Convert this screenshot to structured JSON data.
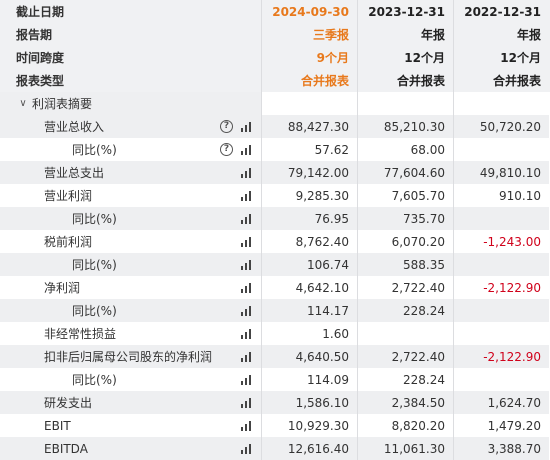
{
  "header": {
    "rows": [
      {
        "label": "截止日期",
        "cols": [
          "2024-09-30",
          "2023-12-31",
          "2022-12-31"
        ]
      },
      {
        "label": "报告期",
        "cols": [
          "三季报",
          "年报",
          "年报"
        ]
      },
      {
        "label": "时间跨度",
        "cols": [
          "9个月",
          "12个月",
          "12个月"
        ]
      },
      {
        "label": "报表类型",
        "cols": [
          "合并报表",
          "合并报表",
          "合并报表"
        ]
      }
    ],
    "highlight_color": "#e8791c"
  },
  "section": {
    "label": "利润表摘要",
    "chevron": "chevron-down-icon"
  },
  "rows": [
    {
      "label": "营业总收入",
      "cols": [
        "88,427.30",
        "85,210.30",
        "50,720.20"
      ]
    },
    {
      "label": "同比(%)",
      "cols": [
        "57.62",
        "68.00",
        ""
      ]
    },
    {
      "label": "营业总支出",
      "cols": [
        "79,142.00",
        "77,604.60",
        "49,810.10"
      ]
    },
    {
      "label": "营业利润",
      "cols": [
        "9,285.30",
        "7,605.70",
        "910.10"
      ]
    },
    {
      "label": "同比(%)",
      "cols": [
        "76.95",
        "735.70",
        ""
      ]
    },
    {
      "label": "税前利润",
      "cols": [
        "8,762.40",
        "6,070.20",
        "-1,243.00"
      ]
    },
    {
      "label": "同比(%)",
      "cols": [
        "106.74",
        "588.35",
        ""
      ]
    },
    {
      "label": "净利润",
      "cols": [
        "4,642.10",
        "2,722.40",
        "-2,122.90"
      ]
    },
    {
      "label": "同比(%)",
      "cols": [
        "114.17",
        "228.24",
        ""
      ]
    },
    {
      "label": "非经常性损益",
      "cols": [
        "1.60",
        "",
        ""
      ]
    },
    {
      "label": "扣非后归属母公司股东的净利润",
      "cols": [
        "4,640.50",
        "2,722.40",
        "-2,122.90"
      ]
    },
    {
      "label": "同比(%)",
      "cols": [
        "114.09",
        "228.24",
        ""
      ]
    },
    {
      "label": "研发支出",
      "cols": [
        "1,586.10",
        "2,384.50",
        "1,624.70"
      ]
    },
    {
      "label": "EBIT",
      "cols": [
        "10,929.30",
        "8,820.20",
        "1,479.20"
      ]
    },
    {
      "label": "EBITDA",
      "cols": [
        "12,616.40",
        "11,061.30",
        "3,388.70"
      ]
    }
  ],
  "icons": {
    "help": "help-icon",
    "chart": "bar-chart-icon"
  }
}
